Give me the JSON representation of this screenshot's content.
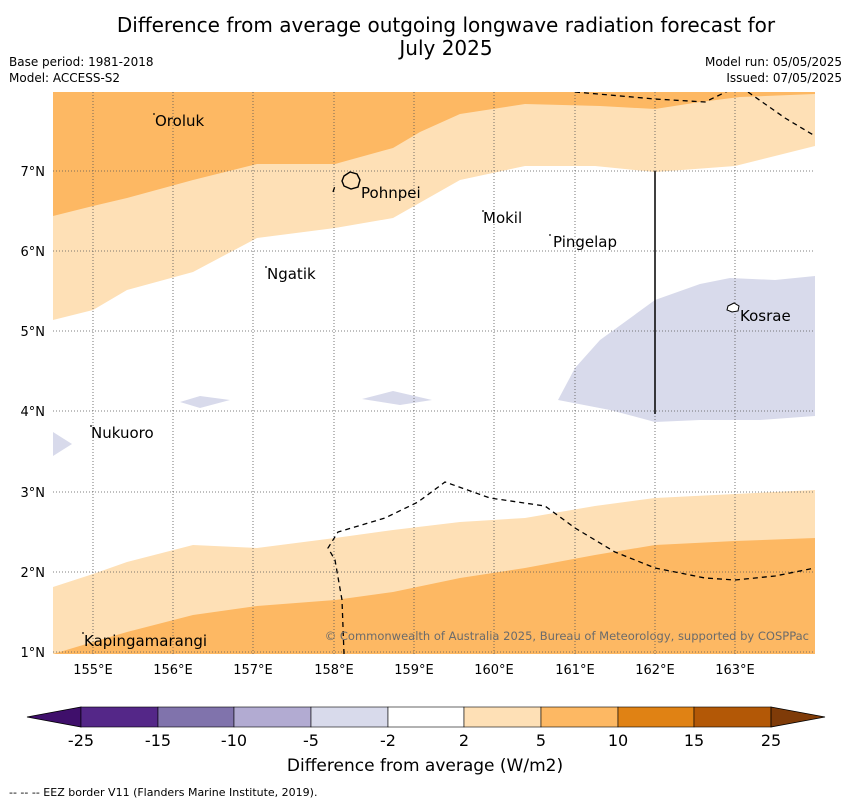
{
  "title_line1": "Difference from average outgoing longwave radiation forecast for",
  "title_line2": "July 2025",
  "base_period": "Base period: 1981-2018",
  "model": "Model: ACCESS-S2",
  "model_run": "Model run: 05/05/2025",
  "issued": "Issued: 07/05/2025",
  "credit": "© Commonwealth of Australia 2025, Bureau of Meteorology, supported by COSPPac",
  "colorbar_label": "Difference from average (W/m2)",
  "footer": "--  --  -- EEZ border V11 (Flanders Marine Institute, 2019).",
  "map": {
    "lon_ticks": [
      "155°E",
      "156°E",
      "157°E",
      "158°E",
      "159°E",
      "160°E",
      "161°E",
      "162°E",
      "163°E"
    ],
    "lat_ticks": [
      "7°N",
      "6°N",
      "5°N",
      "4°N",
      "3°N",
      "2°N",
      "1°N"
    ],
    "places": [
      "Oroluk",
      "Pohnpei",
      "Mokil",
      "Pingelap",
      "Ngatik",
      "Kosrae",
      "Nukuoro",
      "Kapingamarangi"
    ]
  },
  "colorbar": {
    "ticks": [
      "-25",
      "-15",
      "-10",
      "-5",
      "-2",
      "2",
      "5",
      "10",
      "15",
      "25"
    ],
    "colors": [
      "#3f0f6b",
      "#542788",
      "#8073ac",
      "#b2abd2",
      "#d8daeb",
      "#ffffff",
      "#fee0b6",
      "#fdb863",
      "#e08214",
      "#b35806",
      "#7f3b08"
    ]
  }
}
